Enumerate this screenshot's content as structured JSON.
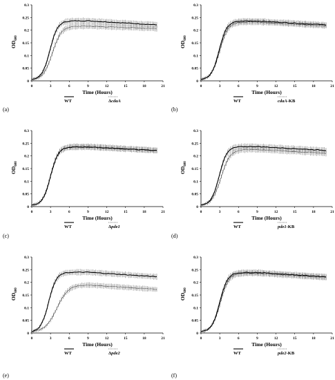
{
  "figure": {
    "panels": [
      {
        "letter": "(a)",
        "chart_data": {
          "type": "line",
          "xlabel": "Time (Hours)",
          "ylabel": "OD",
          "ylabel_sub": "600",
          "xlim": [
            0,
            21
          ],
          "ylim": [
            0,
            0.3
          ],
          "xticks": [
            "0",
            "3",
            "6",
            "9",
            "12",
            "15",
            "18",
            "21"
          ],
          "yticks": [
            "0",
            "0.05",
            "0.1",
            "0.15",
            "0.2",
            "0.25",
            "0.3"
          ],
          "series": [
            {
              "name": "WT",
              "style": "solid",
              "plateau": 0.237,
              "mid": 2.9,
              "rate": 1.6,
              "end": 0.221
            },
            {
              "name": "ΔcdaA",
              "name_prefix": "Δ",
              "name_italic": "cdaA",
              "name_suffix": "",
              "style": "dotted",
              "plateau": 0.216,
              "mid": 3.3,
              "rate": 1.4,
              "end": 0.206
            }
          ],
          "legend_placement": "bottom"
        }
      },
      {
        "letter": "(b)",
        "chart_data": {
          "type": "line",
          "xlabel": "Time (Hours)",
          "ylabel": "OD",
          "ylabel_sub": "600",
          "xlim": [
            0,
            21
          ],
          "ylim": [
            0,
            0.3
          ],
          "xticks": [
            "0",
            "3",
            "6",
            "9",
            "12",
            "15",
            "18",
            "21"
          ],
          "yticks": [
            "0",
            "0.05",
            "0.1",
            "0.15",
            "0.2",
            "0.25",
            "0.3"
          ],
          "series": [
            {
              "name": "WT",
              "style": "solid",
              "plateau": 0.236,
              "mid": 2.9,
              "rate": 1.6,
              "end": 0.221
            },
            {
              "name": "cdaA-KB",
              "name_prefix": "",
              "name_italic": "cdaA",
              "name_suffix": "-KB",
              "style": "dotted",
              "plateau": 0.232,
              "mid": 3.0,
              "rate": 1.5,
              "end": 0.217
            }
          ],
          "legend_placement": "bottom"
        }
      },
      {
        "letter": "(c)",
        "chart_data": {
          "type": "line",
          "xlabel": "Time (Hours)",
          "ylabel": "OD",
          "ylabel_sub": "600",
          "xlim": [
            0,
            21
          ],
          "ylim": [
            0,
            0.3
          ],
          "xticks": [
            "0",
            "3",
            "6",
            "9",
            "12",
            "15",
            "18",
            "21"
          ],
          "yticks": [
            "0",
            "0.05",
            "0.1",
            "0.15",
            "0.2",
            "0.25",
            "0.3"
          ],
          "series": [
            {
              "name": "WT",
              "style": "solid",
              "plateau": 0.235,
              "mid": 3.0,
              "rate": 1.6,
              "end": 0.221
            },
            {
              "name": "Δpde1",
              "name_prefix": "Δ",
              "name_italic": "pde1",
              "name_suffix": "",
              "style": "dotted",
              "plateau": 0.237,
              "mid": 3.0,
              "rate": 1.6,
              "end": 0.222
            }
          ],
          "legend_placement": "bottom"
        }
      },
      {
        "letter": "(d)",
        "chart_data": {
          "type": "line",
          "xlabel": "Time (Hours)",
          "ylabel": "OD",
          "ylabel_sub": "600",
          "xlim": [
            0,
            21
          ],
          "ylim": [
            0,
            0.3
          ],
          "xticks": [
            "0",
            "3",
            "6",
            "9",
            "12",
            "15",
            "18",
            "21"
          ],
          "yticks": [
            "0",
            "0.05",
            "0.1",
            "0.15",
            "0.2",
            "0.25",
            "0.3"
          ],
          "series": [
            {
              "name": "WT",
              "style": "solid",
              "plateau": 0.237,
              "mid": 2.9,
              "rate": 1.6,
              "end": 0.222
            },
            {
              "name": "pde1-KB",
              "name_prefix": "",
              "name_italic": "pde1",
              "name_suffix": "-KB",
              "style": "dotted",
              "plateau": 0.225,
              "mid": 3.2,
              "rate": 1.4,
              "end": 0.21
            }
          ],
          "legend_placement": "bottom"
        }
      },
      {
        "letter": "(e)",
        "chart_data": {
          "type": "line",
          "xlabel": "Time (Hours)",
          "ylabel": "OD",
          "ylabel_sub": "600",
          "xlim": [
            0,
            21
          ],
          "ylim": [
            0,
            0.3
          ],
          "xticks": [
            "0",
            "3",
            "6",
            "9",
            "12",
            "15",
            "18",
            "21"
          ],
          "yticks": [
            "0",
            "0.05",
            "0.1",
            "0.15",
            "0.2",
            "0.25",
            "0.3"
          ],
          "series": [
            {
              "name": "WT",
              "style": "solid",
              "plateau": 0.24,
              "mid": 2.7,
              "rate": 1.6,
              "end": 0.222
            },
            {
              "name": "Δpde2",
              "name_prefix": "Δ",
              "name_italic": "pde2",
              "name_suffix": "",
              "style": "dotted",
              "plateau": 0.19,
              "mid": 4.0,
              "rate": 1.1,
              "end": 0.172
            }
          ],
          "legend_placement": "bottom"
        }
      },
      {
        "letter": "(f)",
        "chart_data": {
          "type": "line",
          "xlabel": "Time (Hours)",
          "ylabel": "OD",
          "ylabel_sub": "600",
          "xlim": [
            0,
            21
          ],
          "ylim": [
            0,
            0.3
          ],
          "xticks": [
            "0",
            "3",
            "6",
            "9",
            "12",
            "15",
            "18",
            "21"
          ],
          "yticks": [
            "0",
            "0.05",
            "0.1",
            "0.15",
            "0.2",
            "0.25",
            "0.3"
          ],
          "series": [
            {
              "name": "WT",
              "style": "solid",
              "plateau": 0.239,
              "mid": 3.0,
              "rate": 1.6,
              "end": 0.222
            },
            {
              "name": "pde2-KB",
              "name_prefix": "",
              "name_italic": "pde2",
              "name_suffix": "-KB",
              "style": "dotted",
              "plateau": 0.236,
              "mid": 3.1,
              "rate": 1.5,
              "end": 0.219
            }
          ],
          "legend_placement": "bottom"
        }
      }
    ]
  }
}
